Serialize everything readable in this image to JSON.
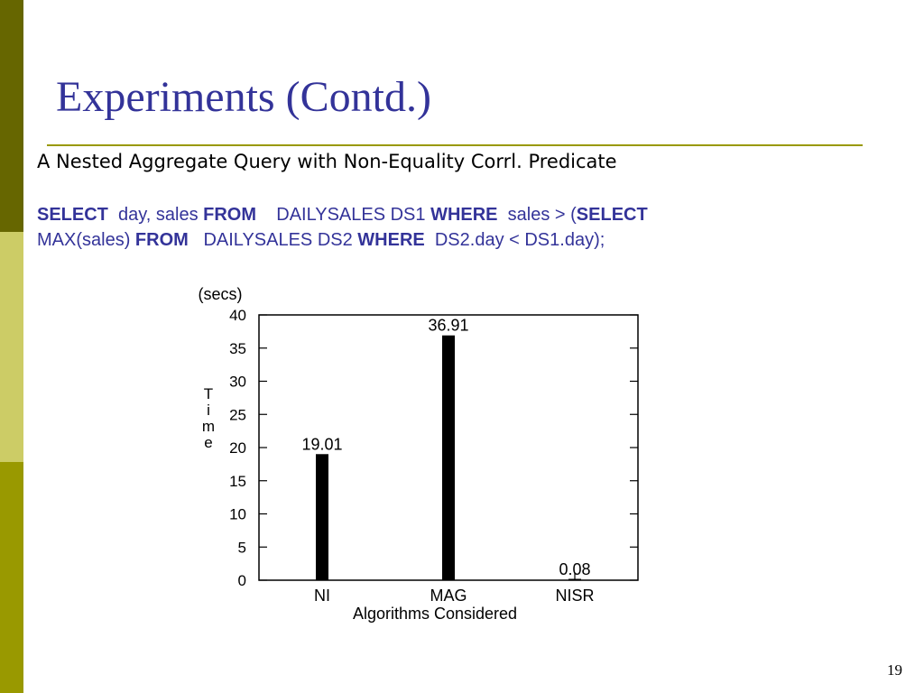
{
  "theme": {
    "sidebar_colors": [
      "#666600",
      "#cccc66",
      "#999900"
    ],
    "title_color": "#333399",
    "rule_color": "#999900",
    "sql_color": "#333399",
    "keyword_color": "#333399",
    "bar_color": "#000000"
  },
  "slide": {
    "title": "Experiments (Contd.)",
    "subtitle": "A Nested Aggregate Query with Non-Equality Corrl. Predicate",
    "sql": {
      "line1": [
        {
          "text": "SELECT",
          "kw": true
        },
        {
          "text": "  day, sales ",
          "kw": false
        },
        {
          "text": "FROM",
          "kw": true
        },
        {
          "text": "    DAILYSALES DS1 ",
          "kw": false
        },
        {
          "text": "WHERE",
          "kw": true
        },
        {
          "text": "  sales > (",
          "kw": false
        },
        {
          "text": "SELECT",
          "kw": true
        }
      ],
      "line2": [
        {
          "text": "MAX(sales) ",
          "kw": false
        },
        {
          "text": "FROM",
          "kw": true
        },
        {
          "text": "   DAILYSALES DS2 ",
          "kw": false
        },
        {
          "text": "WHERE",
          "kw": true
        },
        {
          "text": "  DS2.day < DS1.day);",
          "kw": false
        }
      ]
    },
    "page_number": "19"
  },
  "chart_data": {
    "type": "bar",
    "categories": [
      "NI",
      "MAG",
      "NISR"
    ],
    "values": [
      19.01,
      36.91,
      0.08
    ],
    "data_labels": [
      "19.01",
      "36.91",
      "0.08"
    ],
    "unit_label": "(secs)",
    "ylabel": "Time",
    "xlabel": "Algorithms Considered",
    "ylim": [
      0,
      40
    ],
    "yticks": [
      0,
      5,
      10,
      15,
      20,
      25,
      30,
      35,
      40
    ],
    "grid": false,
    "legend": "none"
  }
}
